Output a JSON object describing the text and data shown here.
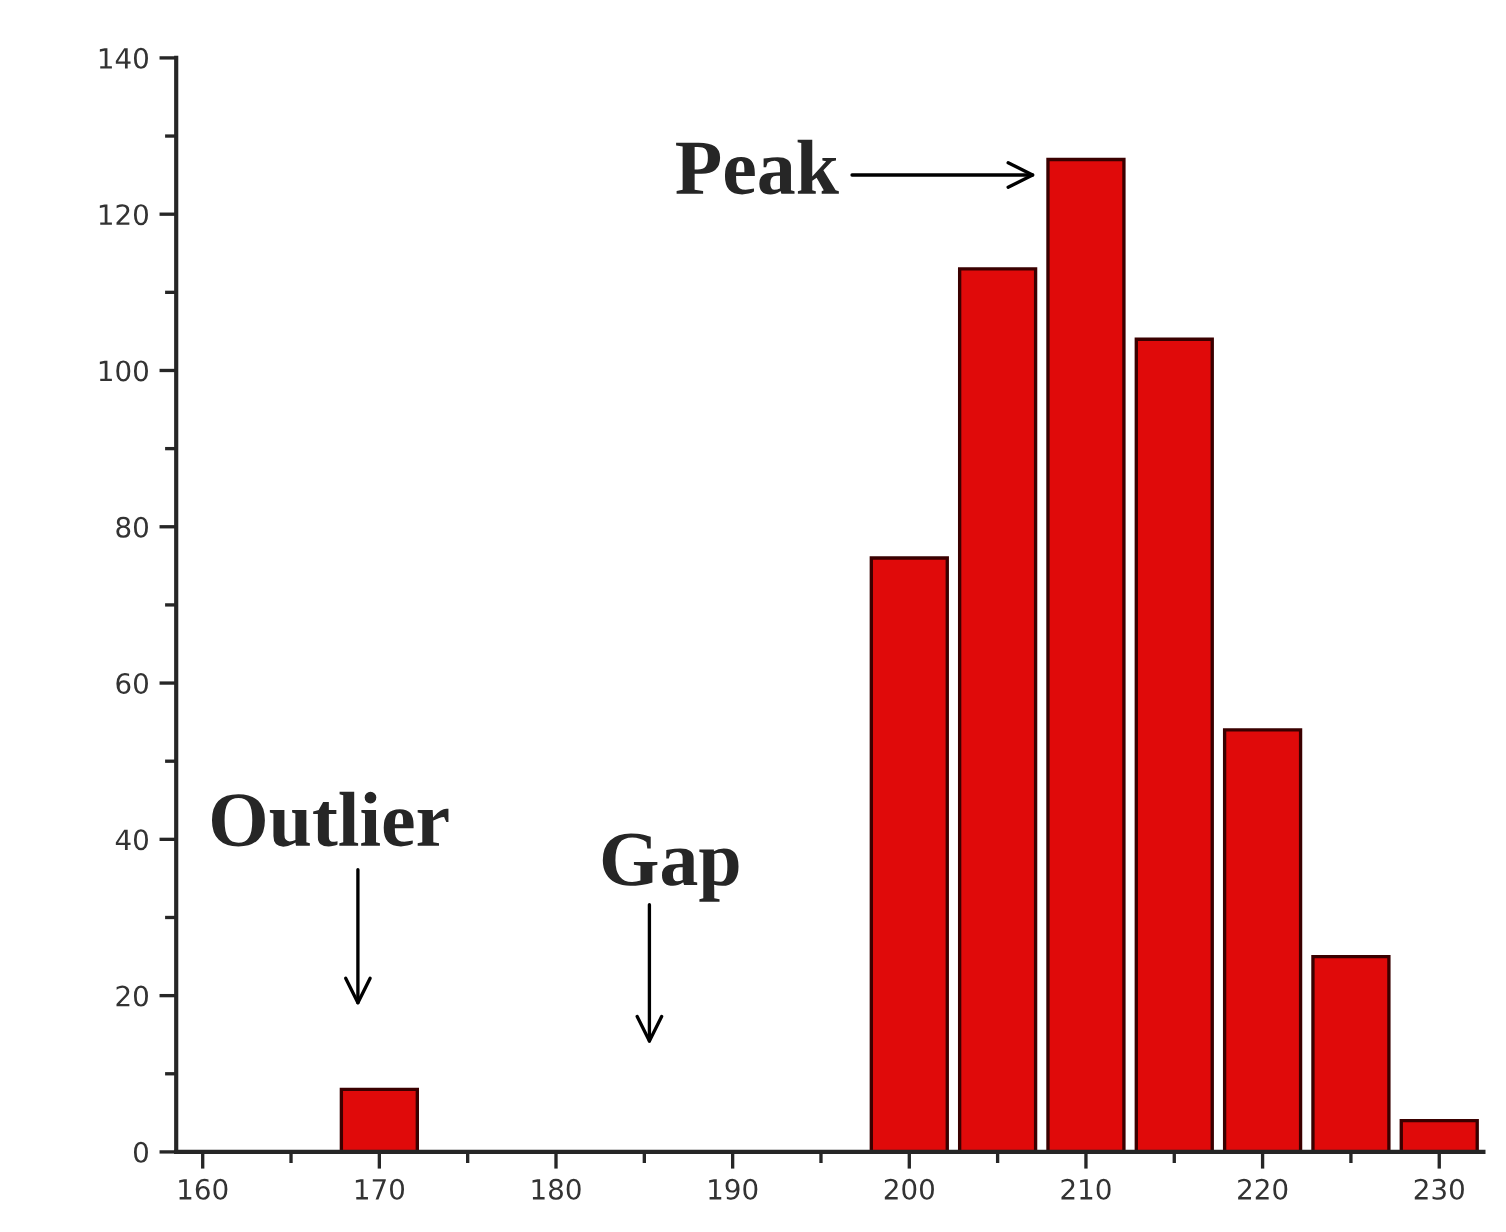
{
  "chart_data": {
    "type": "histogram",
    "bins": [
      167.5,
      172.5,
      177.5,
      182.5,
      187.5,
      192.5,
      197.5,
      202.5,
      207.5,
      212.5,
      217.5,
      222.5,
      227.5,
      232.5
    ],
    "values": [
      8,
      0,
      0,
      0,
      0,
      0,
      76,
      113,
      127,
      104,
      54,
      25,
      4
    ],
    "color": "#e00a0a",
    "xlim": [
      158.5,
      232.5
    ],
    "xticks": [
      160,
      170,
      180,
      190,
      200,
      210,
      220,
      230
    ],
    "ylim": [
      0,
      140
    ],
    "yticks": [
      0,
      20,
      40,
      60,
      80,
      100,
      120,
      140
    ],
    "grid": false,
    "annotations": [
      "Peak",
      "Outlier",
      "Gap"
    ]
  }
}
